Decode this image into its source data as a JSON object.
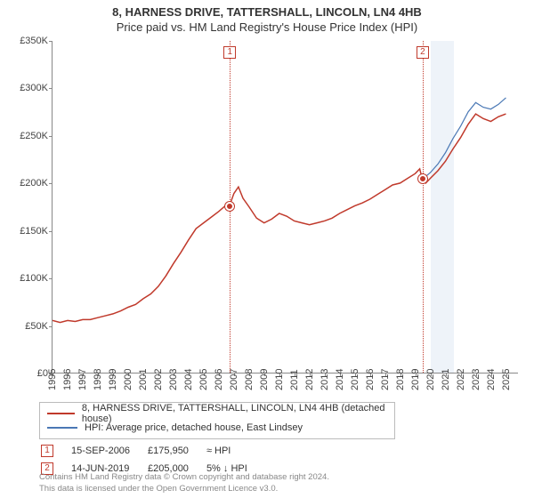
{
  "title_line1": "8, HARNESS DRIVE, TATTERSHALL, LINCOLN, LN4 4HB",
  "title_line2": "Price paid vs. HM Land Registry's House Price Index (HPI)",
  "chart": {
    "type": "line",
    "background_color": "#ffffff",
    "band_color": "#eef3f9",
    "axis_color": "#888888",
    "font_size_axis": 11,
    "currency_prefix": "£",
    "ylim": [
      0,
      350000
    ],
    "ytick_step": 50000,
    "yticks": [
      "£0",
      "£50K",
      "£100K",
      "£150K",
      "£200K",
      "£250K",
      "£300K",
      "£350K"
    ],
    "xlim": [
      1995,
      2025.8
    ],
    "xticks": [
      1995,
      1996,
      1997,
      1998,
      1999,
      2000,
      2001,
      2002,
      2003,
      2004,
      2005,
      2006,
      2007,
      2008,
      2009,
      2010,
      2011,
      2012,
      2013,
      2014,
      2015,
      2016,
      2017,
      2018,
      2019,
      2020,
      2021,
      2022,
      2023,
      2024,
      2025
    ],
    "covid_band": {
      "start": 2020.0,
      "end": 2021.5
    },
    "series": [
      {
        "id": "subject",
        "label": "8, HARNESS DRIVE, TATTERSHALL, LINCOLN, LN4 4HB (detached house)",
        "color": "#c0392b",
        "line_width": 1.5,
        "data": [
          [
            1995.0,
            55000
          ],
          [
            1995.5,
            53000
          ],
          [
            1996.0,
            55000
          ],
          [
            1996.5,
            54000
          ],
          [
            1997.0,
            56000
          ],
          [
            1997.5,
            56000
          ],
          [
            1998.0,
            58000
          ],
          [
            1998.5,
            60000
          ],
          [
            1999.0,
            62000
          ],
          [
            1999.5,
            65000
          ],
          [
            2000.0,
            69000
          ],
          [
            2000.5,
            72000
          ],
          [
            2001.0,
            78000
          ],
          [
            2001.5,
            83000
          ],
          [
            2002.0,
            91000
          ],
          [
            2002.5,
            102000
          ],
          [
            2003.0,
            115000
          ],
          [
            2003.5,
            127000
          ],
          [
            2004.0,
            140000
          ],
          [
            2004.5,
            152000
          ],
          [
            2005.0,
            158000
          ],
          [
            2005.5,
            164000
          ],
          [
            2006.0,
            170000
          ],
          [
            2006.5,
            177000
          ],
          [
            2006.71,
            175950
          ],
          [
            2007.0,
            189000
          ],
          [
            2007.3,
            196000
          ],
          [
            2007.6,
            184000
          ],
          [
            2008.0,
            175000
          ],
          [
            2008.5,
            163000
          ],
          [
            2009.0,
            158000
          ],
          [
            2009.5,
            162000
          ],
          [
            2010.0,
            168000
          ],
          [
            2010.5,
            165000
          ],
          [
            2011.0,
            160000
          ],
          [
            2011.5,
            158000
          ],
          [
            2012.0,
            156000
          ],
          [
            2012.5,
            158000
          ],
          [
            2013.0,
            160000
          ],
          [
            2013.5,
            163000
          ],
          [
            2014.0,
            168000
          ],
          [
            2014.5,
            172000
          ],
          [
            2015.0,
            176000
          ],
          [
            2015.5,
            179000
          ],
          [
            2016.0,
            183000
          ],
          [
            2016.5,
            188000
          ],
          [
            2017.0,
            193000
          ],
          [
            2017.5,
            198000
          ],
          [
            2018.0,
            200000
          ],
          [
            2018.5,
            205000
          ],
          [
            2019.0,
            210000
          ],
          [
            2019.3,
            215000
          ],
          [
            2019.45,
            205000
          ],
          [
            2019.7,
            200000
          ],
          [
            2020.0,
            205000
          ],
          [
            2020.5,
            213000
          ],
          [
            2021.0,
            223000
          ],
          [
            2021.5,
            236000
          ],
          [
            2022.0,
            248000
          ],
          [
            2022.5,
            262000
          ],
          [
            2023.0,
            273000
          ],
          [
            2023.5,
            268000
          ],
          [
            2024.0,
            265000
          ],
          [
            2024.5,
            270000
          ],
          [
            2025.0,
            273000
          ]
        ]
      },
      {
        "id": "hpi",
        "label": "HPI: Average price, detached house, East Lindsey",
        "color": "#4a78b5",
        "line_width": 1.2,
        "data": [
          [
            2019.45,
            205000
          ],
          [
            2019.7,
            207000
          ],
          [
            2020.0,
            211000
          ],
          [
            2020.5,
            220000
          ],
          [
            2021.0,
            232000
          ],
          [
            2021.5,
            247000
          ],
          [
            2022.0,
            260000
          ],
          [
            2022.5,
            275000
          ],
          [
            2023.0,
            285000
          ],
          [
            2023.5,
            280000
          ],
          [
            2024.0,
            278000
          ],
          [
            2024.5,
            283000
          ],
          [
            2025.0,
            290000
          ]
        ]
      }
    ],
    "event_markers": [
      {
        "n": "1",
        "x": 2006.71,
        "y": 175950,
        "label_y_offset": -22
      },
      {
        "n": "2",
        "x": 2019.45,
        "y": 205000,
        "label_y_offset": -22
      }
    ]
  },
  "legend": {
    "series_ref": [
      "subject",
      "hpi"
    ]
  },
  "events": [
    {
      "n": "1",
      "date": "15-SEP-2006",
      "price": "£175,950",
      "change": "≈ HPI"
    },
    {
      "n": "2",
      "date": "14-JUN-2019",
      "price": "£205,000",
      "change": "5% ↓ HPI"
    }
  ],
  "footer_line1": "Contains HM Land Registry data © Crown copyright and database right 2024.",
  "footer_line2": "This data is licensed under the Open Government Licence v3.0."
}
